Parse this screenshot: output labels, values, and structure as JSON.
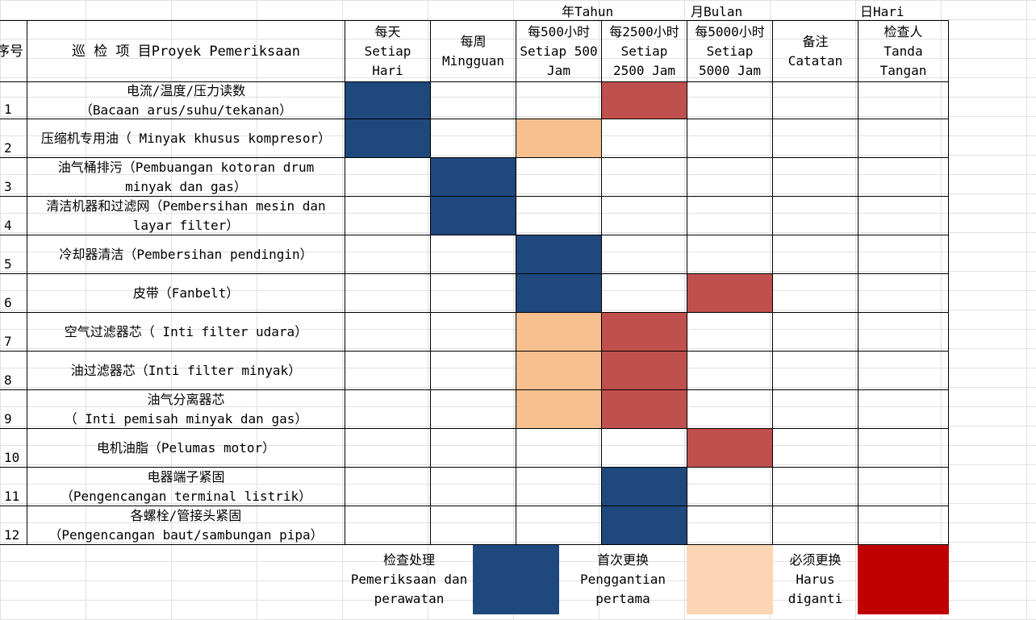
{
  "time_units": {
    "year": "年Tahun",
    "month": "月Bulan",
    "day": "日Hari"
  },
  "headers": {
    "no": "序号",
    "item": "巡 检 项 目Proyek Pemeriksaan",
    "daily": [
      "每天",
      "Setiap",
      "Hari"
    ],
    "weekly": [
      "每周",
      "Mingguan"
    ],
    "h500": [
      "每500小时",
      "Setiap 500",
      "Jam"
    ],
    "h2500": [
      "每2500小时",
      "Setiap",
      "2500 Jam"
    ],
    "h5000": [
      "每5000小时",
      "Setiap",
      "5000 Jam"
    ],
    "note": [
      "备注",
      "Catatan"
    ],
    "inspector": [
      "检查人",
      "Tanda",
      "Tangan"
    ]
  },
  "rows": [
    {
      "no": "1",
      "item": [
        "电流/温度/压力读数",
        "（Bacaan arus/suhu/tekanan）"
      ],
      "cells": [
        "inspect",
        "",
        "",
        "replace",
        "",
        "",
        ""
      ]
    },
    {
      "no": "2",
      "item": [
        "压缩机专用油（ Minyak khusus kompresor）"
      ],
      "cells": [
        "inspect",
        "",
        "first",
        "",
        "",
        "",
        ""
      ]
    },
    {
      "no": "3",
      "item": [
        "油气桶排污（Pembuangan kotoran drum",
        "minyak dan gas）"
      ],
      "cells": [
        "",
        "inspect",
        "",
        "",
        "",
        "",
        ""
      ]
    },
    {
      "no": "4",
      "item": [
        "清洁机器和过滤网（Pembersihan mesin dan",
        "layar filter）"
      ],
      "cells": [
        "",
        "inspect",
        "",
        "",
        "",
        "",
        ""
      ]
    },
    {
      "no": "5",
      "item": [
        "冷却器清洁（Pembersihan pendingin）"
      ],
      "cells": [
        "",
        "",
        "inspect",
        "",
        "",
        "",
        ""
      ]
    },
    {
      "no": "6",
      "item": [
        "皮带（Fanbelt）"
      ],
      "cells": [
        "",
        "",
        "inspect",
        "",
        "replace",
        "",
        ""
      ]
    },
    {
      "no": "7",
      "item": [
        "空气过滤器芯（ Inti filter udara）"
      ],
      "cells": [
        "",
        "",
        "first",
        "replace",
        "",
        "",
        ""
      ]
    },
    {
      "no": "8",
      "item": [
        "油过滤器芯（Inti filter minyak）"
      ],
      "cells": [
        "",
        "",
        "first",
        "replace",
        "",
        "",
        ""
      ]
    },
    {
      "no": "9",
      "item": [
        "油气分离器芯",
        "（ Inti pemisah minyak dan gas）"
      ],
      "cells": [
        "",
        "",
        "first",
        "replace",
        "",
        "",
        ""
      ]
    },
    {
      "no": "10",
      "item": [
        "电机油脂（Pelumas motor）"
      ],
      "cells": [
        "",
        "",
        "",
        "",
        "replace",
        "",
        ""
      ]
    },
    {
      "no": "11",
      "item": [
        "电器端子紧固",
        "（Pengencangan terminal listrik）"
      ],
      "cells": [
        "",
        "",
        "",
        "inspect",
        "",
        "",
        ""
      ]
    },
    {
      "no": "12",
      "item": [
        "各螺栓/管接头紧固",
        "（Pengencangan baut/sambungan pipa）"
      ],
      "cells": [
        "",
        "",
        "",
        "inspect",
        "",
        "",
        ""
      ]
    }
  ],
  "legend": {
    "inspect": [
      "检查处理",
      "Pemeriksaan dan",
      "perawatan"
    ],
    "first": [
      "首次更换",
      "Penggantian",
      "pertama"
    ],
    "replace": [
      "必须更换",
      "Harus",
      "diganti"
    ]
  },
  "colors": {
    "inspect": "#1f497d",
    "first": "#f8c08f",
    "replace": "#c0504d",
    "legend_first": "#fcd5b4",
    "legend_replace": "#c00000",
    "gridline": "#e1e1e1"
  }
}
